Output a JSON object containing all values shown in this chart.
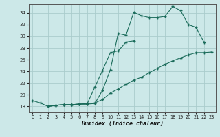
{
  "xlabel": "Humidex (Indice chaleur)",
  "bg_color": "#cce8e8",
  "grid_color": "#aacccc",
  "line_color": "#1a6b5a",
  "xlim": [
    -0.5,
    23.5
  ],
  "ylim": [
    17.0,
    35.5
  ],
  "yticks": [
    18,
    20,
    22,
    24,
    26,
    28,
    30,
    32,
    34
  ],
  "xticks": [
    0,
    1,
    2,
    3,
    4,
    5,
    6,
    7,
    8,
    9,
    10,
    11,
    12,
    13,
    14,
    15,
    16,
    17,
    18,
    19,
    20,
    21,
    22,
    23
  ],
  "line1_x": [
    0,
    1,
    2,
    3,
    4,
    5,
    6,
    7,
    8,
    9,
    10,
    11,
    12,
    13,
    14,
    15,
    16,
    17,
    18,
    19,
    20,
    21,
    22
  ],
  "line1_y": [
    19.0,
    18.6,
    18.0,
    18.2,
    18.3,
    18.3,
    18.4,
    18.4,
    18.5,
    20.8,
    24.3,
    30.5,
    30.2,
    34.1,
    33.5,
    33.2,
    33.2,
    33.4,
    35.1,
    34.4,
    32.0,
    31.5,
    29.0
  ],
  "line2_x": [
    2,
    3,
    4,
    5,
    6,
    7,
    8,
    9,
    10,
    11,
    12,
    13
  ],
  "line2_y": [
    18.0,
    18.2,
    18.3,
    18.3,
    18.4,
    18.4,
    21.3,
    24.2,
    27.2,
    27.5,
    29.0,
    29.2
  ],
  "line3_x": [
    2,
    3,
    4,
    5,
    6,
    7,
    8,
    9,
    10,
    11,
    12,
    13,
    14,
    15,
    16,
    17,
    18,
    19,
    20,
    21,
    22,
    23
  ],
  "line3_y": [
    18.0,
    18.2,
    18.3,
    18.3,
    18.4,
    18.5,
    18.6,
    19.2,
    20.3,
    21.0,
    21.8,
    22.5,
    23.0,
    23.8,
    24.5,
    25.2,
    25.8,
    26.3,
    26.8,
    27.2,
    27.2,
    27.3
  ]
}
